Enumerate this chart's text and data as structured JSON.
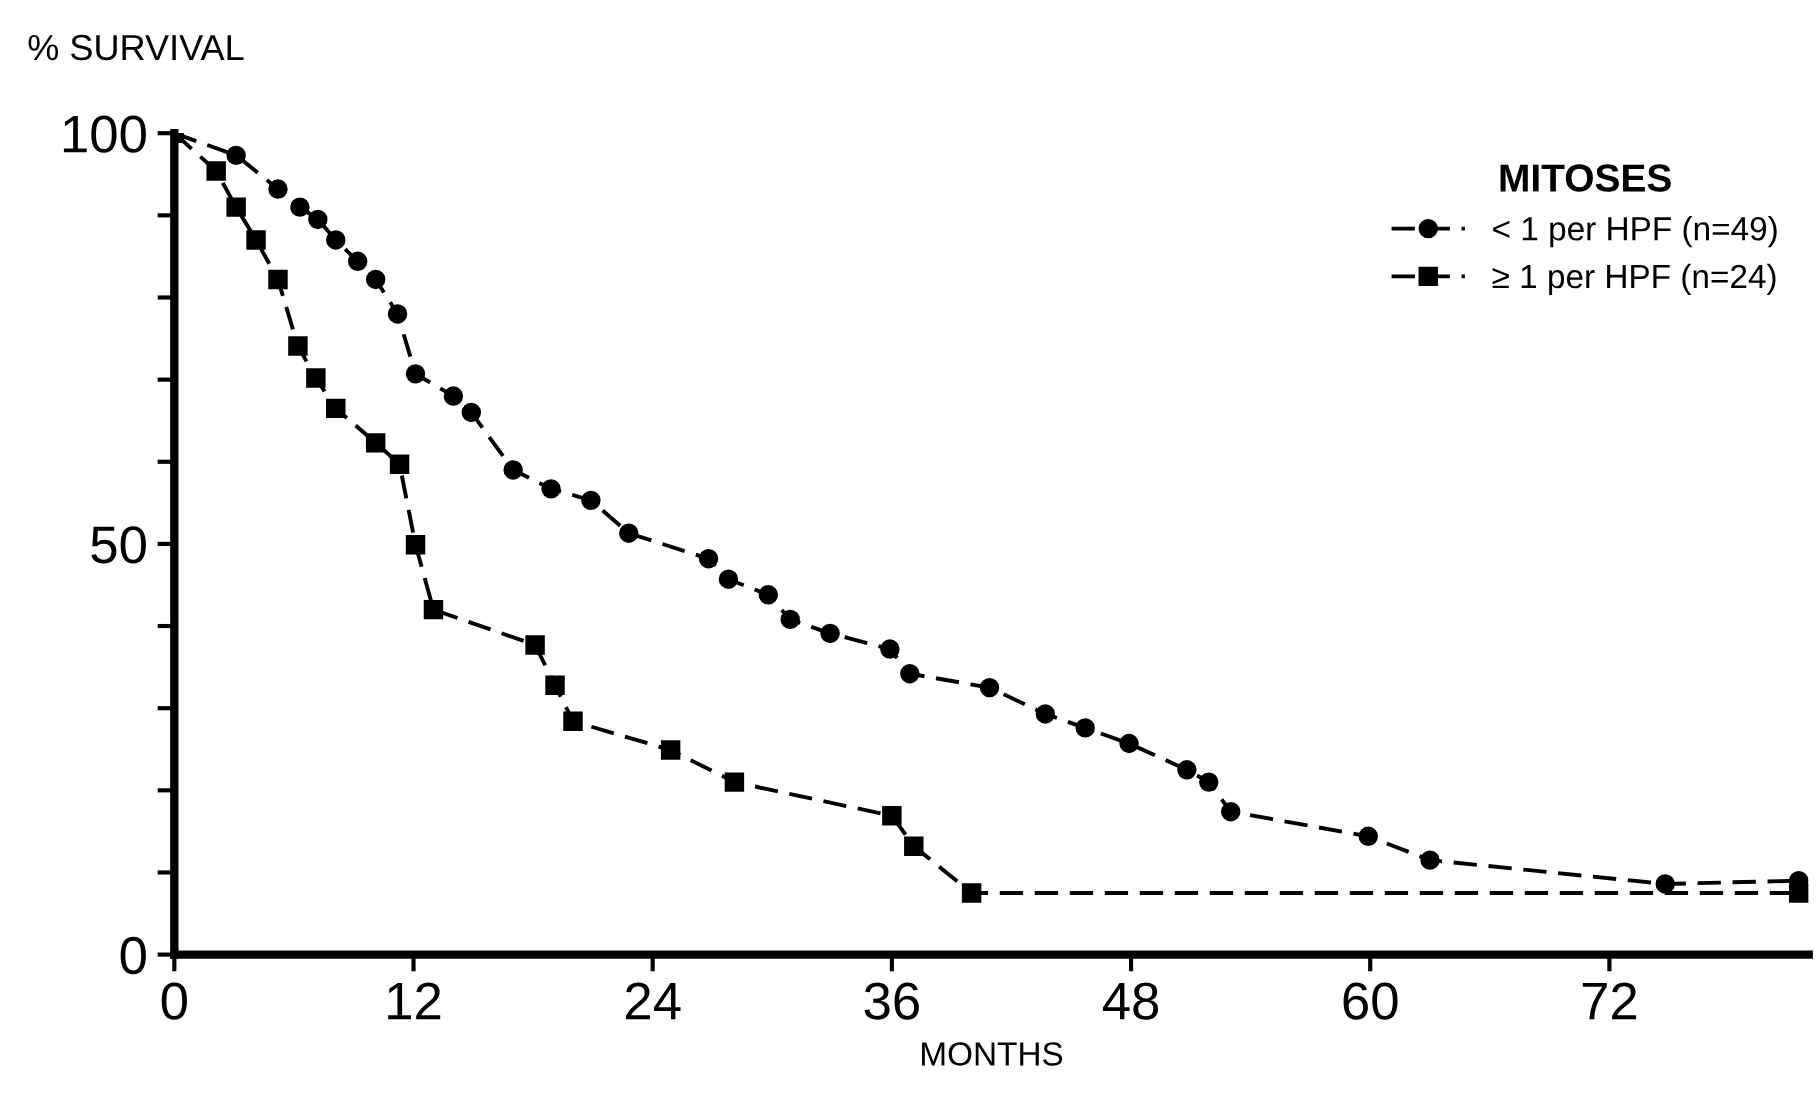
{
  "chart_data": {
    "type": "line",
    "xlabel": "MONTHS",
    "ylabel": "% SURVIVAL",
    "legend_title": "MITOSES",
    "legend": "top right",
    "grid": false,
    "line_style": "dashed",
    "xlim": [
      0,
      82
    ],
    "xticks": [
      0,
      12,
      24,
      36,
      48,
      60,
      72
    ],
    "ylim": [
      0,
      100
    ],
    "yticks": [
      0,
      {
        "value": 10,
        "label": null
      },
      {
        "value": 20,
        "label": null
      },
      {
        "value": 30,
        "label": null
      },
      {
        "value": 40,
        "label": null
      },
      50,
      {
        "value": 60,
        "label": null
      },
      {
        "value": 70,
        "label": null
      },
      {
        "value": 80,
        "label": null
      },
      {
        "value": 90,
        "label": null
      },
      100
    ],
    "series": [
      {
        "name": "< 1 per HPF (n=49)",
        "color": "#000000",
        "marker": "circle",
        "x": [
          0,
          3.1,
          5.2,
          6.3,
          7.2,
          8.1,
          9.2,
          10.1,
          11.2,
          12.1,
          14,
          14.9,
          17,
          18.9,
          20.9,
          22.8,
          26.8,
          27.8,
          29.8,
          30.9,
          32.9,
          35.9,
          36.9,
          40.9,
          43.7,
          45.7,
          47.9,
          50.8,
          51.9,
          53,
          59.9,
          63,
          74.8,
          81.5
        ],
        "values": [
          100,
          97.3,
          93.2,
          91,
          89.5,
          87,
          84.4,
          82.2,
          78,
          70.7,
          68,
          66,
          59,
          56.7,
          55.3,
          51.3,
          48.2,
          45.7,
          43.8,
          40.8,
          39.1,
          37.2,
          34.2,
          32.5,
          29.3,
          27.6,
          25.7,
          22.5,
          21,
          17.4,
          14.4,
          11.5,
          8.6,
          9
        ]
      },
      {
        "name": "≥ 1 per HPF (n=24)",
        "color": "#000000",
        "marker": "square",
        "x": [
          0,
          2.1,
          3.1,
          4.1,
          5.2,
          6.2,
          7.1,
          8.1,
          10.1,
          11.3,
          12.1,
          13,
          18.1,
          19.1,
          20,
          24.9,
          28.1,
          36,
          37.1,
          40,
          81.5
        ],
        "values": [
          100,
          95.4,
          91,
          87,
          82.2,
          74.1,
          70.2,
          66.5,
          62.3,
          59.7,
          49.9,
          42,
          37.7,
          32.8,
          28.4,
          24.9,
          21,
          16.9,
          13.2,
          7.5,
          7.5
        ]
      }
    ]
  }
}
